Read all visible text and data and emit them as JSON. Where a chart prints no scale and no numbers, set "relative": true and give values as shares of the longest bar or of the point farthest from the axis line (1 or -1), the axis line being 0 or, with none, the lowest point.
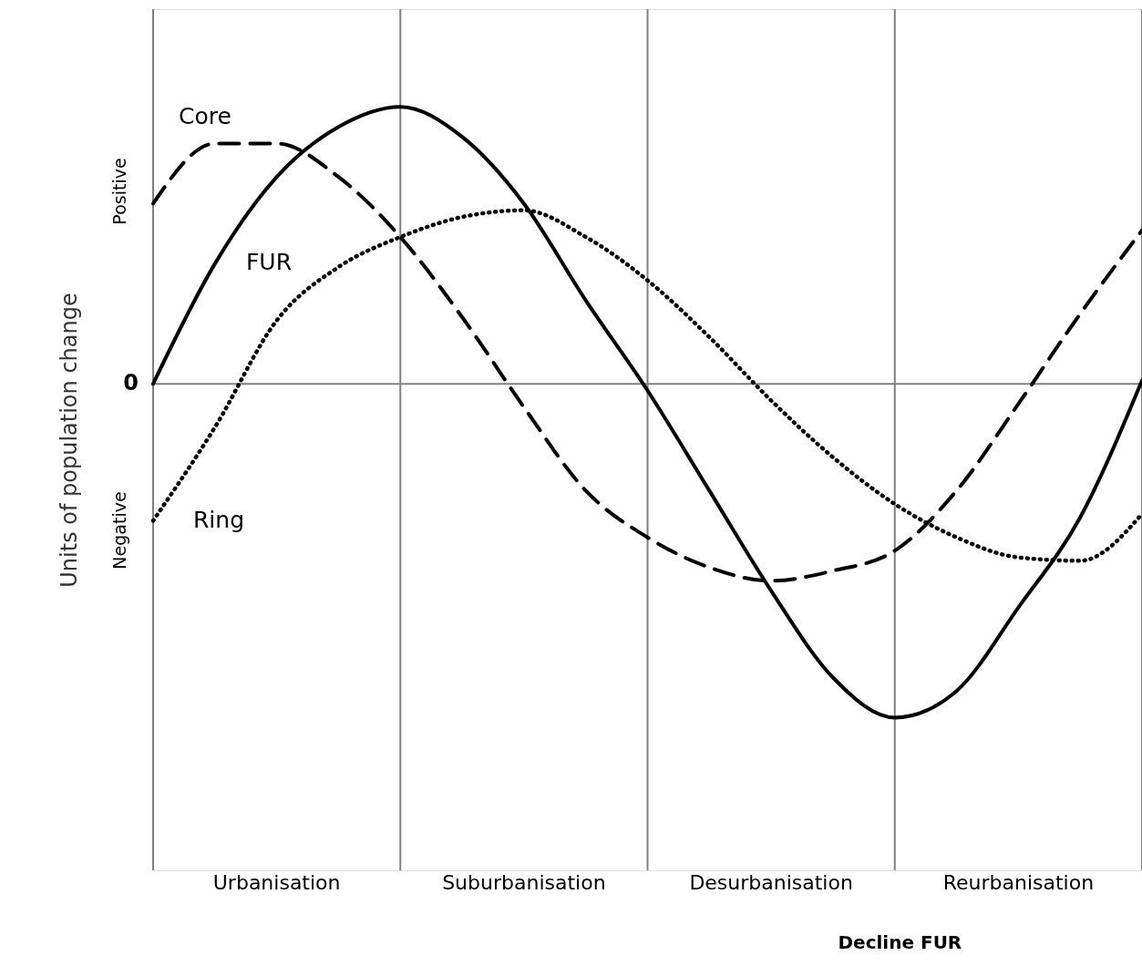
{
  "chart_data": {
    "type": "line",
    "relative": true,
    "ylabel": "Units of population change",
    "grid": "x",
    "categories": [
      null,
      null,
      null,
      null,
      null,
      null,
      null,
      null,
      null,
      null,
      null,
      null,
      null,
      null,
      null,
      null,
      null
    ],
    "series": [
      {
        "name": "Core",
        "color": "#000000",
        "line_style": "dashed",
        "values": [
          0.54,
          0.72,
          0.72,
          0.62,
          0.44,
          0.2,
          -0.07,
          -0.32,
          -0.46,
          -0.55,
          -0.59,
          -0.56,
          -0.5,
          -0.32,
          -0.06,
          0.21,
          0.46
        ]
      },
      {
        "name": "FUR",
        "color": "#000000",
        "line_style": "solid",
        "values": [
          0,
          0.36,
          0.62,
          0.77,
          0.83,
          0.74,
          0.54,
          0.25,
          -0.02,
          -0.32,
          -0.62,
          -0.88,
          -1,
          -0.92,
          -0.67,
          -0.4,
          0.01
        ]
      },
      {
        "name": "Ring",
        "color": "#000000",
        "line_style": "dotted",
        "values": [
          -0.41,
          -0.13,
          0.19,
          0.35,
          0.44,
          0.5,
          0.52,
          0.44,
          0.31,
          0.14,
          -0.05,
          -0.22,
          -0.36,
          -0.46,
          -0.52,
          -0.53,
          -0.39
        ]
      }
    ],
    "ref_lines": [
      {
        "axis": "y",
        "value": 0,
        "label": "0",
        "color": "#808080"
      }
    ],
    "annotations": [
      "Urbanisation",
      "Suburbanisation",
      "Desurbanisation",
      "Reurbanisation",
      "Positive",
      "Negative",
      "Decline FUR"
    ]
  }
}
